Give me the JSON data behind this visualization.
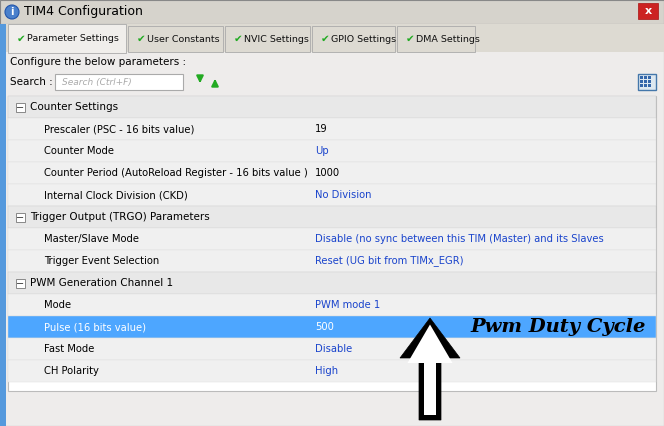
{
  "title": "TIM4 Configuration",
  "tabs": [
    "Parameter Settings",
    "User Constants",
    "NVIC Settings",
    "GPIO Settings",
    "DMA Settings"
  ],
  "tab_widths": [
    118,
    95,
    85,
    83,
    78
  ],
  "search_placeholder": "Search (Ctrl+F)",
  "sections": [
    {
      "name": "Counter Settings",
      "rows": [
        {
          "label": "Prescaler (PSC - 16 bits value)",
          "value": "19",
          "val_blue": false
        },
        {
          "label": "Counter Mode",
          "value": "Up",
          "val_blue": true
        },
        {
          "label": "Counter Period (AutoReload Register - 16 bits value )",
          "value": "1000",
          "val_blue": false
        },
        {
          "label": "Internal Clock Division (CKD)",
          "value": "No Division",
          "val_blue": true
        }
      ]
    },
    {
      "name": "Trigger Output (TRGO) Parameters",
      "rows": [
        {
          "label": "Master/Slave Mode",
          "value": "Disable (no sync between this TIM (Master) and its Slaves",
          "val_blue": true
        },
        {
          "label": "Trigger Event Selection",
          "value": "Reset (UG bit from TIMx_EGR)",
          "val_blue": true
        }
      ]
    },
    {
      "name": "PWM Generation Channel 1",
      "rows": [
        {
          "label": "Mode",
          "value": "PWM mode 1",
          "val_blue": true
        },
        {
          "label": "Pulse (16 bits value)",
          "value": "500",
          "val_blue": false,
          "highlight": true
        },
        {
          "label": "Fast Mode",
          "value": "Disable",
          "val_blue": true
        },
        {
          "label": "CH Polarity",
          "value": "High",
          "val_blue": true
        }
      ]
    }
  ],
  "annotation_text": "Pwm Duty Cycle",
  "highlight_bg": "#4da6ff",
  "section_bg": "#e8e8e8",
  "row_bg1": "#f0f0f0",
  "row_bg2": "#fafafa",
  "content_bg": "#ffffff",
  "dialog_bg": "#eeeceb",
  "title_bar_bg": "#d6d3cc",
  "tab_active_bg": "#f0eeeb",
  "tab_strip_bg": "#dddad2",
  "green_check_color": "#22aa22",
  "blue_val_color": "#1a44cc",
  "left_stripe_color": "#5599dd",
  "border_color": "#a0a0a0"
}
